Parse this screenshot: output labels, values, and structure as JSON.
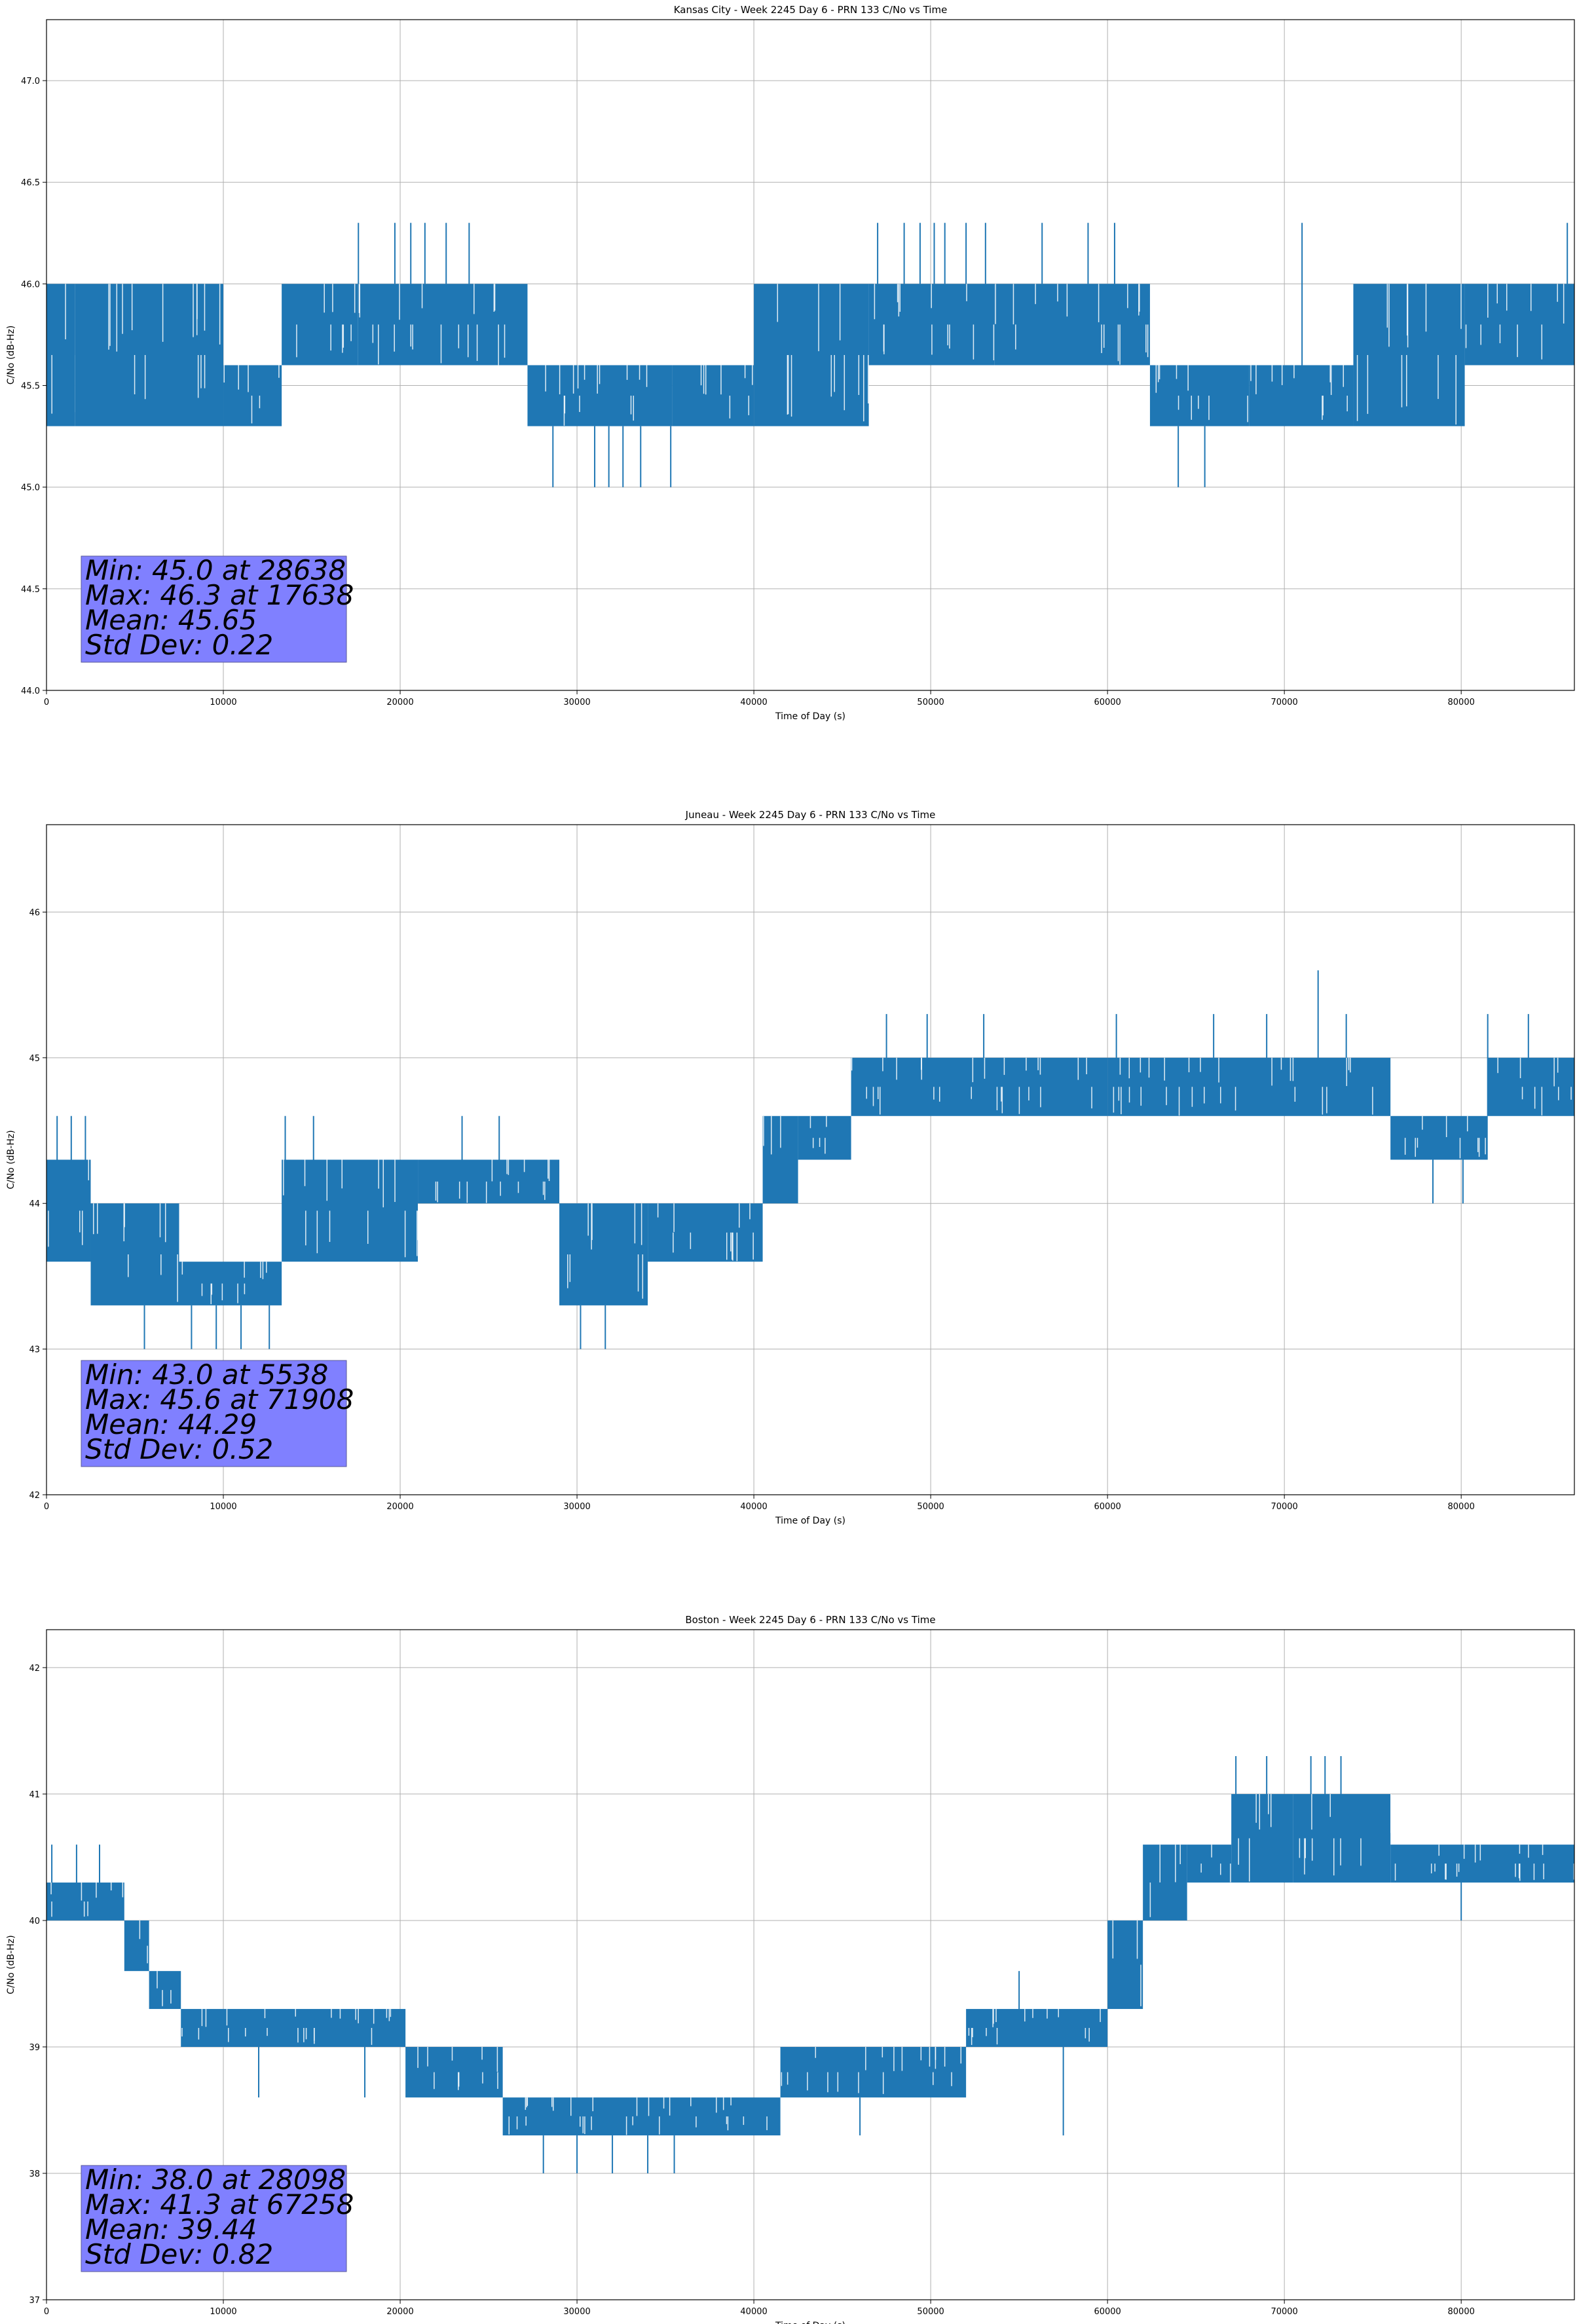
{
  "chart_data": [
    {
      "type": "line",
      "title": "Kansas City - Week 2245 Day 6 - PRN 133 C/No vs Time",
      "xlabel": "Time of Day (s)",
      "ylabel": "C/No (dB-Hz)",
      "xlim": [
        0,
        86400
      ],
      "ylim": [
        44.0,
        47.3
      ],
      "xticks": [
        0,
        10000,
        20000,
        30000,
        40000,
        50000,
        60000,
        70000,
        80000
      ],
      "yticks": [
        44.0,
        44.5,
        45.0,
        45.5,
        46.0,
        46.5,
        47.0
      ],
      "ytick_decimals": 1,
      "grid": true,
      "line_color": "#1f77b4",
      "series": [
        {
          "segments": [
            {
              "x0": 0,
              "x1": 1600,
              "lo": 45.3,
              "hi": 46.0
            },
            {
              "x0": 1600,
              "x1": 10000,
              "lo": 45.3,
              "hi": 46.0
            },
            {
              "x0": 10000,
              "x1": 13300,
              "lo": 45.3,
              "hi": 45.6
            },
            {
              "x0": 13300,
              "x1": 17600,
              "lo": 45.6,
              "hi": 46.0
            },
            {
              "x0": 17600,
              "x1": 27200,
              "lo": 45.6,
              "hi": 46.0
            },
            {
              "x0": 27200,
              "x1": 35400,
              "lo": 45.3,
              "hi": 45.6
            },
            {
              "x0": 35400,
              "x1": 40000,
              "lo": 45.3,
              "hi": 45.6
            },
            {
              "x0": 40000,
              "x1": 46500,
              "lo": 45.3,
              "hi": 46.0
            },
            {
              "x0": 46500,
              "x1": 53600,
              "lo": 45.6,
              "hi": 46.0
            },
            {
              "x0": 53600,
              "x1": 62400,
              "lo": 45.6,
              "hi": 46.0
            },
            {
              "x0": 62400,
              "x1": 68000,
              "lo": 45.3,
              "hi": 45.6
            },
            {
              "x0": 68000,
              "x1": 73900,
              "lo": 45.3,
              "hi": 45.6
            },
            {
              "x0": 73900,
              "x1": 80200,
              "lo": 45.3,
              "hi": 46.0
            },
            {
              "x0": 80200,
              "x1": 86400,
              "lo": 45.6,
              "hi": 46.0
            }
          ],
          "spikes": [
            {
              "x": 17638,
              "to": 46.3
            },
            {
              "x": 19700,
              "to": 46.3
            },
            {
              "x": 20600,
              "to": 46.3
            },
            {
              "x": 21400,
              "to": 46.3
            },
            {
              "x": 22600,
              "to": 46.3
            },
            {
              "x": 23900,
              "to": 46.3
            },
            {
              "x": 47000,
              "to": 46.3
            },
            {
              "x": 48500,
              "to": 46.3
            },
            {
              "x": 49400,
              "to": 46.3
            },
            {
              "x": 50200,
              "to": 46.3
            },
            {
              "x": 50800,
              "to": 46.3
            },
            {
              "x": 52000,
              "to": 46.3
            },
            {
              "x": 53100,
              "to": 46.3
            },
            {
              "x": 56300,
              "to": 46.3
            },
            {
              "x": 58900,
              "to": 46.3
            },
            {
              "x": 60400,
              "to": 46.3
            },
            {
              "x": 71000,
              "to": 46.3
            },
            {
              "x": 86000,
              "to": 46.3
            },
            {
              "x": 28638,
              "to": 45.0
            },
            {
              "x": 31000,
              "to": 45.0
            },
            {
              "x": 31800,
              "to": 45.0
            },
            {
              "x": 32600,
              "to": 45.0
            },
            {
              "x": 33600,
              "to": 45.0
            },
            {
              "x": 35300,
              "to": 45.0
            },
            {
              "x": 64000,
              "to": 45.0
            },
            {
              "x": 65500,
              "to": 45.0
            }
          ]
        }
      ],
      "stats": {
        "min": "Min: 45.0 at 28638",
        "max": "Max: 46.3 at 17638",
        "mean": "Mean: 45.65",
        "std": "Std Dev: 0.22"
      }
    },
    {
      "type": "line",
      "title": "Juneau - Week 2245 Day 6 - PRN 133 C/No vs Time",
      "xlabel": "Time of Day (s)",
      "ylabel": "C/No (dB-Hz)",
      "xlim": [
        0,
        86400
      ],
      "ylim": [
        42.0,
        46.6
      ],
      "xticks": [
        0,
        10000,
        20000,
        30000,
        40000,
        50000,
        60000,
        70000,
        80000
      ],
      "yticks": [
        42,
        43,
        44,
        45,
        46
      ],
      "ytick_decimals": 0,
      "grid": true,
      "line_color": "#1f77b4",
      "series": [
        {
          "segments": [
            {
              "x0": 0,
              "x1": 2500,
              "lo": 43.6,
              "hi": 44.3
            },
            {
              "x0": 2500,
              "x1": 7500,
              "lo": 43.3,
              "hi": 44.0
            },
            {
              "x0": 7500,
              "x1": 13300,
              "lo": 43.3,
              "hi": 43.6
            },
            {
              "x0": 13300,
              "x1": 21000,
              "lo": 43.6,
              "hi": 44.3
            },
            {
              "x0": 21000,
              "x1": 29000,
              "lo": 44.0,
              "hi": 44.3
            },
            {
              "x0": 29000,
              "x1": 34000,
              "lo": 43.3,
              "hi": 44.0
            },
            {
              "x0": 34000,
              "x1": 40500,
              "lo": 43.6,
              "hi": 44.0
            },
            {
              "x0": 40500,
              "x1": 42500,
              "lo": 44.0,
              "hi": 44.6
            },
            {
              "x0": 42500,
              "x1": 45500,
              "lo": 44.3,
              "hi": 44.6
            },
            {
              "x0": 45500,
              "x1": 60000,
              "lo": 44.6,
              "hi": 45.0
            },
            {
              "x0": 60000,
              "x1": 76000,
              "lo": 44.6,
              "hi": 45.0
            },
            {
              "x0": 76000,
              "x1": 81500,
              "lo": 44.3,
              "hi": 44.6
            },
            {
              "x0": 81500,
              "x1": 86400,
              "lo": 44.6,
              "hi": 45.0
            }
          ],
          "spikes": [
            {
              "x": 600,
              "to": 44.6
            },
            {
              "x": 1400,
              "to": 44.6
            },
            {
              "x": 2200,
              "to": 44.6
            },
            {
              "x": 13500,
              "to": 44.6
            },
            {
              "x": 15100,
              "to": 44.6
            },
            {
              "x": 23500,
              "to": 44.6
            },
            {
              "x": 25600,
              "to": 44.6
            },
            {
              "x": 47500,
              "to": 45.3
            },
            {
              "x": 49800,
              "to": 45.3
            },
            {
              "x": 53000,
              "to": 45.3
            },
            {
              "x": 60500,
              "to": 45.3
            },
            {
              "x": 66000,
              "to": 45.3
            },
            {
              "x": 69000,
              "to": 45.3
            },
            {
              "x": 71908,
              "to": 45.6
            },
            {
              "x": 73500,
              "to": 45.3
            },
            {
              "x": 81500,
              "to": 45.3
            },
            {
              "x": 83800,
              "to": 45.3
            },
            {
              "x": 5538,
              "to": 43.0
            },
            {
              "x": 8200,
              "to": 43.0
            },
            {
              "x": 9600,
              "to": 43.0
            },
            {
              "x": 11000,
              "to": 43.0
            },
            {
              "x": 12600,
              "to": 43.0
            },
            {
              "x": 30200,
              "to": 43.0
            },
            {
              "x": 31600,
              "to": 43.0
            },
            {
              "x": 78400,
              "to": 44.0
            },
            {
              "x": 80100,
              "to": 44.0
            }
          ]
        }
      ],
      "stats": {
        "min": "Min: 43.0 at 5538",
        "max": "Max: 45.6 at 71908",
        "mean": "Mean: 44.29",
        "std": "Std Dev: 0.52"
      }
    },
    {
      "type": "line",
      "title": "Boston - Week 2245 Day 6 - PRN 133 C/No vs Time",
      "xlabel": "Time of Day (s)",
      "ylabel": "C/No (dB-Hz)",
      "xlim": [
        0,
        86400
      ],
      "ylim": [
        37.0,
        42.3
      ],
      "xticks": [
        0,
        10000,
        20000,
        30000,
        40000,
        50000,
        60000,
        70000,
        80000
      ],
      "yticks": [
        37,
        38,
        39,
        40,
        41,
        42
      ],
      "ytick_decimals": 0,
      "grid": true,
      "line_color": "#1f77b4",
      "series": [
        {
          "segments": [
            {
              "x0": 0,
              "x1": 4400,
              "lo": 40.0,
              "hi": 40.3
            },
            {
              "x0": 4400,
              "x1": 5800,
              "lo": 39.6,
              "hi": 40.0
            },
            {
              "x0": 5800,
              "x1": 7600,
              "lo": 39.3,
              "hi": 39.6
            },
            {
              "x0": 7600,
              "x1": 20300,
              "lo": 39.0,
              "hi": 39.3
            },
            {
              "x0": 20300,
              "x1": 25800,
              "lo": 38.6,
              "hi": 39.0
            },
            {
              "x0": 25800,
              "x1": 41500,
              "lo": 38.3,
              "hi": 38.6
            },
            {
              "x0": 41500,
              "x1": 52000,
              "lo": 38.6,
              "hi": 39.0
            },
            {
              "x0": 52000,
              "x1": 60000,
              "lo": 39.0,
              "hi": 39.3
            },
            {
              "x0": 60000,
              "x1": 62000,
              "lo": 39.3,
              "hi": 40.0
            },
            {
              "x0": 62000,
              "x1": 64500,
              "lo": 40.0,
              "hi": 40.6
            },
            {
              "x0": 64500,
              "x1": 67000,
              "lo": 40.3,
              "hi": 40.6
            },
            {
              "x0": 67000,
              "x1": 70500,
              "lo": 40.3,
              "hi": 41.0
            },
            {
              "x0": 70500,
              "x1": 76000,
              "lo": 40.3,
              "hi": 41.0
            },
            {
              "x0": 76000,
              "x1": 86400,
              "lo": 40.3,
              "hi": 40.6
            }
          ],
          "spikes": [
            {
              "x": 300,
              "to": 40.6
            },
            {
              "x": 1700,
              "to": 40.6
            },
            {
              "x": 3000,
              "to": 40.6
            },
            {
              "x": 67258,
              "to": 41.3
            },
            {
              "x": 69000,
              "to": 41.3
            },
            {
              "x": 71500,
              "to": 41.3
            },
            {
              "x": 72300,
              "to": 41.3
            },
            {
              "x": 73200,
              "to": 41.3
            },
            {
              "x": 28098,
              "to": 38.0
            },
            {
              "x": 30000,
              "to": 38.0
            },
            {
              "x": 32000,
              "to": 38.0
            },
            {
              "x": 34000,
              "to": 38.0
            },
            {
              "x": 35500,
              "to": 38.0
            },
            {
              "x": 46000,
              "to": 38.3
            },
            {
              "x": 57500,
              "to": 38.3
            },
            {
              "x": 12000,
              "to": 38.6
            },
            {
              "x": 18000,
              "to": 38.6
            },
            {
              "x": 55000,
              "to": 39.6
            },
            {
              "x": 80000,
              "to": 40.0
            }
          ]
        }
      ],
      "stats": {
        "min": "Min: 38.0 at 28098",
        "max": "Max: 41.3 at 67258",
        "mean": "Mean: 39.44",
        "std": "Std Dev: 0.82"
      }
    }
  ]
}
